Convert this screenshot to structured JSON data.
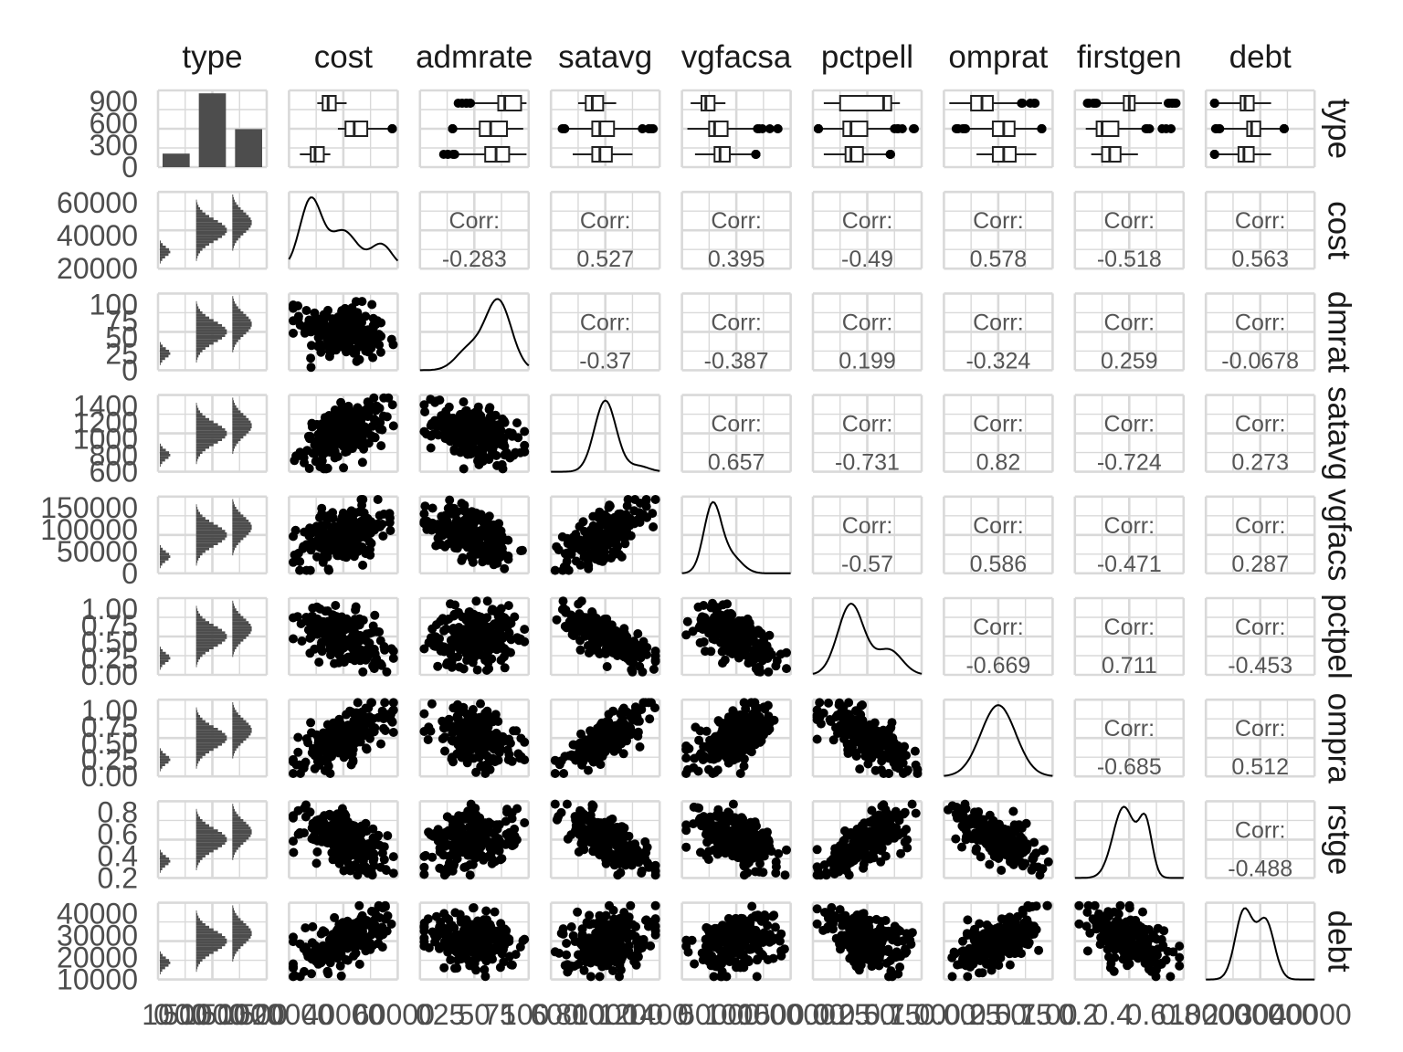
{
  "chart_data": {
    "type": "scatter",
    "title": "",
    "variables": [
      "type",
      "cost",
      "admrate",
      "satavg",
      "avgfacsal",
      "pctpell",
      "comprate",
      "firstgen",
      "debt"
    ],
    "column_strip_labels": [
      "type",
      "cost",
      "admrate",
      "satavg",
      "vgfacsa",
      "pctpell",
      "omprat",
      "firstgen",
      "debt"
    ],
    "row_strip_labels": [
      "type",
      "cost",
      "dmrat",
      "satavg",
      "vgfacs",
      "pctpel",
      "ompra",
      "rstge",
      "debt"
    ],
    "corr_label": "Corr:",
    "correlations": [
      {
        "row": "cost",
        "col": "admrate",
        "value": "-0.283"
      },
      {
        "row": "cost",
        "col": "satavg",
        "value": "0.527"
      },
      {
        "row": "cost",
        "col": "avgfacsal",
        "value": "0.395"
      },
      {
        "row": "cost",
        "col": "pctpell",
        "value": "-0.49"
      },
      {
        "row": "cost",
        "col": "comprate",
        "value": "0.578"
      },
      {
        "row": "cost",
        "col": "firstgen",
        "value": "-0.518"
      },
      {
        "row": "cost",
        "col": "debt",
        "value": "0.563"
      },
      {
        "row": "admrate",
        "col": "satavg",
        "value": "-0.37"
      },
      {
        "row": "admrate",
        "col": "avgfacsal",
        "value": "-0.387"
      },
      {
        "row": "admrate",
        "col": "pctpell",
        "value": "0.199"
      },
      {
        "row": "admrate",
        "col": "comprate",
        "value": "-0.324"
      },
      {
        "row": "admrate",
        "col": "firstgen",
        "value": "0.259"
      },
      {
        "row": "admrate",
        "col": "debt",
        "value": "-0.0678"
      },
      {
        "row": "satavg",
        "col": "avgfacsal",
        "value": "0.657"
      },
      {
        "row": "satavg",
        "col": "pctpell",
        "value": "-0.731"
      },
      {
        "row": "satavg",
        "col": "comprate",
        "value": "0.82"
      },
      {
        "row": "satavg",
        "col": "firstgen",
        "value": "-0.724"
      },
      {
        "row": "satavg",
        "col": "debt",
        "value": "0.273"
      },
      {
        "row": "avgfacsal",
        "col": "pctpell",
        "value": "-0.57"
      },
      {
        "row": "avgfacsal",
        "col": "comprate",
        "value": "0.586"
      },
      {
        "row": "avgfacsal",
        "col": "firstgen",
        "value": "-0.471"
      },
      {
        "row": "avgfacsal",
        "col": "debt",
        "value": "0.287"
      },
      {
        "row": "pctpell",
        "col": "comprate",
        "value": "-0.669"
      },
      {
        "row": "pctpell",
        "col": "firstgen",
        "value": "0.711"
      },
      {
        "row": "pctpell",
        "col": "debt",
        "value": "-0.453"
      },
      {
        "row": "comprate",
        "col": "firstgen",
        "value": "-0.685"
      },
      {
        "row": "comprate",
        "col": "debt",
        "value": "0.512"
      },
      {
        "row": "firstgen",
        "col": "debt",
        "value": "-0.488"
      }
    ],
    "y_axis_ticks": [
      [
        "900",
        "600",
        "300",
        "0"
      ],
      [
        "60000",
        "40000",
        "20000"
      ],
      [
        "100",
        "75",
        "50",
        "25",
        "0"
      ],
      [
        "1400",
        "1200",
        "1000",
        "800",
        "600"
      ],
      [
        "150000",
        "100000",
        "50000",
        "0"
      ],
      [
        "1.00",
        "0.75",
        "0.50",
        "0.25",
        "0.00"
      ],
      [
        "1.00",
        "0.75",
        "0.50",
        "0.25",
        "0.00"
      ],
      [
        "0.8",
        "0.6",
        "0.4",
        "0.2"
      ],
      [
        "40000",
        "30000",
        "20000",
        "10000"
      ]
    ],
    "x_axis_ticks": [
      [
        "0",
        "1000",
        "500",
        "0",
        "1000",
        "500",
        "0",
        "1000",
        "500"
      ],
      [
        "20000",
        "40000",
        "60000"
      ],
      [
        "0",
        "25",
        "50",
        "75",
        "100"
      ],
      [
        "600",
        "800",
        "1000",
        "1200",
        "1400"
      ],
      [
        "0",
        "50000",
        "100000",
        "150000"
      ],
      [
        "0.00",
        "0.25",
        "0.50",
        "0.75",
        "1.00"
      ],
      [
        "0.00",
        "0.25",
        "0.50",
        "0.75",
        "1.00"
      ],
      [
        "0.2",
        "0.4",
        "0.6",
        "0.8"
      ],
      [
        "10000",
        "20000",
        "30000",
        "40000"
      ]
    ],
    "type_bar_counts": [
      185,
      1010,
      520
    ],
    "type_count_ylim": [
      0,
      1050
    ],
    "ranges": {
      "cost": [
        5000,
        70000
      ],
      "admrate": [
        0,
        100
      ],
      "satavg": [
        600,
        1560
      ],
      "avgfacsal": [
        0,
        185000
      ],
      "pctpell": [
        0,
        1
      ],
      "comprate": [
        0,
        1
      ],
      "firstgen": [
        0.1,
        0.9
      ],
      "debt": [
        3000,
        42000
      ]
    },
    "grid": true,
    "colors": {
      "points": "#000000",
      "bars": "#4d4d4d",
      "grid": "#d9d9d9",
      "corr_text": "#555555",
      "axis_text": "#4d4d4d",
      "strip_text": "#1a1a1a"
    }
  }
}
